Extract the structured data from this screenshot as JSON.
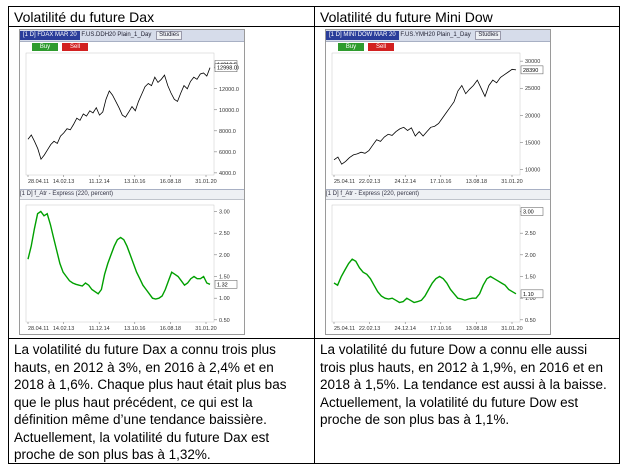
{
  "table": {
    "headers": [
      "Volatilité du future Dax",
      "Volatilité du future Mini Dow"
    ],
    "descriptions": [
      "La volatilité du future Dax a connu trois plus hauts, en 2012 à 3%, en 2016 à 2,4% et en 2018 à 1,6%. Chaque plus haut était plus bas que le plus haut précédent, ce qui est la définition même d’une tendance baissière. Actuellement, la volatilité du future Dax est proche de son plus bas à 1,32%.",
      "La volatilité du future Dow a connu elle aussi trois plus hauts, en 2012 à 1,9%, en 2016 et en 2018 à 1,5%. La tendance est aussi à la baisse. Actuellement, la volatilité du future Dow est proche de son plus bas à 1,1%."
    ]
  },
  "charts": [
    {
      "toolbar": {
        "prefix": "[1 D] FDAX MAR 20",
        "symbol": "F.US.DDH20 Plain_1_Day",
        "studies": "Studies"
      },
      "buy_label": "Buy",
      "sell_label": "Sell",
      "x_ticks": [
        "28.04.11",
        "14.02.13",
        "11.12.14",
        "13.10.16",
        "16.08.18",
        "31.01.20"
      ],
      "indicator_label": "[1 D] f_Atr - Express (220, percent)",
      "chart_data": [
        {
          "type": "line",
          "title": "",
          "y_ticks": [
            "4000.0",
            "6000.0",
            "8000.0",
            "10000.0",
            "12000.0",
            "14000.0"
          ],
          "ylim": [
            3800,
            15400
          ],
          "last_value_labels": [
            "14310.5",
            "12998.0"
          ],
          "line_color": "#000000",
          "series": [
            {
              "values": [
                7200,
                7600,
                7000,
                6300,
                5300,
                5700,
                6200,
                6700,
                7000,
                6800,
                7500,
                7800,
                8200,
                8100,
                8600,
                9200,
                9000,
                9600,
                9400,
                9900,
                9700,
                10200,
                9500,
                9800,
                11000,
                11800,
                11400,
                10800,
                10200,
                9500,
                9300,
                9800,
                10300,
                9900,
                10800,
                11500,
                12200,
                12500,
                12300,
                13100,
                12600,
                12900,
                13300,
                12300,
                11600,
                11000,
                10800,
                11600,
                12300,
                12000,
                12700,
                13100,
                12900,
                13400,
                13500,
                13200,
                14000
              ]
            }
          ]
        },
        {
          "type": "line",
          "title": "",
          "y_ticks": [
            "0.50",
            "1.00",
            "1.50",
            "2.00",
            "2.50",
            "3.00"
          ],
          "ylim": [
            0.45,
            3.15
          ],
          "last_value_labels": [
            "1.32"
          ],
          "line_color": "#00a000",
          "series": [
            {
              "values": [
                1.9,
                2.2,
                2.6,
                2.95,
                3.0,
                2.9,
                2.95,
                2.7,
                2.4,
                2.1,
                1.8,
                1.6,
                1.5,
                1.4,
                1.35,
                1.32,
                1.3,
                1.28,
                1.35,
                1.3,
                1.2,
                1.15,
                1.1,
                1.2,
                1.55,
                1.8,
                2.0,
                2.2,
                2.35,
                2.4,
                2.35,
                2.2,
                2.0,
                1.8,
                1.6,
                1.45,
                1.3,
                1.2,
                1.1,
                1.0,
                0.98,
                1.0,
                1.05,
                1.2,
                1.4,
                1.6,
                1.55,
                1.5,
                1.4,
                1.3,
                1.35,
                1.45,
                1.5,
                1.45,
                1.45,
                1.5,
                1.35,
                1.32
              ]
            }
          ]
        }
      ]
    },
    {
      "toolbar": {
        "prefix": "[1 D] MINI DOW MAR 20",
        "symbol": "F.US.YMH20 Plain_1_Day",
        "studies": "Studies"
      },
      "buy_label": "Buy",
      "sell_label": "Sell",
      "x_ticks": [
        "25.04.11",
        "22.02.13",
        "24.12.14",
        "17.10.16",
        "13.08.18",
        "31.01.20"
      ],
      "indicator_label": "[1 D] f_Atr - Express (220, percent)",
      "chart_data": [
        {
          "type": "line",
          "title": "",
          "y_ticks": [
            "10000",
            "15000",
            "20000",
            "25000",
            "30000"
          ],
          "ylim": [
            9000,
            31500
          ],
          "last_value_labels": [
            "28390"
          ],
          "line_color": "#000000",
          "series": [
            {
              "values": [
                11800,
                12300,
                11000,
                11500,
                12200,
                12700,
                12900,
                13200,
                13000,
                13500,
                14500,
                15500,
                15200,
                16000,
                16500,
                16300,
                17000,
                17500,
                17800,
                17200,
                17700,
                16200,
                17000,
                16200,
                17000,
                17800,
                18000,
                18500,
                19500,
                20500,
                21500,
                22500,
                24500,
                25500,
                24000,
                24800,
                25500,
                26500,
                25000,
                23500,
                25500,
                26500,
                26000,
                27000,
                27500,
                28000,
                28500,
                28390
              ]
            }
          ]
        },
        {
          "type": "line",
          "title": "",
          "y_ticks": [
            "0.50",
            "1.00",
            "1.50",
            "2.00",
            "2.50",
            "3.00"
          ],
          "ylim": [
            0.45,
            3.15
          ],
          "last_value_labels": [
            "3.00",
            "1.10"
          ],
          "line_color": "#00a000",
          "series": [
            {
              "values": [
                1.35,
                1.3,
                1.5,
                1.65,
                1.8,
                1.9,
                1.85,
                1.7,
                1.6,
                1.55,
                1.45,
                1.3,
                1.15,
                1.05,
                1.0,
                0.98,
                1.0,
                0.95,
                0.9,
                0.92,
                1.0,
                0.95,
                0.9,
                0.92,
                0.95,
                1.05,
                1.2,
                1.35,
                1.45,
                1.5,
                1.45,
                1.35,
                1.2,
                1.1,
                1.0,
                0.98,
                0.95,
                0.98,
                1.0,
                1.0,
                1.1,
                1.3,
                1.45,
                1.5,
                1.45,
                1.4,
                1.35,
                1.3,
                1.2,
                1.15,
                1.1
              ]
            }
          ]
        }
      ]
    }
  ]
}
